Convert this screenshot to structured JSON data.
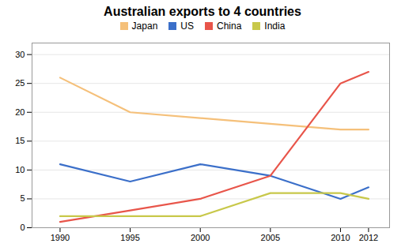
{
  "chart_data": {
    "type": "line",
    "title": "Australian exports to 4 countries",
    "x": [
      1990,
      1995,
      2000,
      2005,
      2010,
      2012
    ],
    "series": [
      {
        "name": "Japan",
        "color": "#F5C07A",
        "values": [
          26,
          20,
          19,
          18,
          17,
          17
        ]
      },
      {
        "name": "US",
        "color": "#3B6FC9",
        "values": [
          11,
          8,
          11,
          9,
          5,
          7
        ]
      },
      {
        "name": "China",
        "color": "#E8554A",
        "values": [
          1,
          3,
          5,
          9,
          25,
          27
        ]
      },
      {
        "name": "India",
        "color": "#C8C84A",
        "values": [
          2,
          2,
          2,
          6,
          6,
          5
        ]
      }
    ],
    "xlim": [
      1988,
      2013.5
    ],
    "xticks": [
      1990,
      1995,
      2000,
      2005,
      2010,
      2012
    ],
    "ylim": [
      0,
      32
    ],
    "yticks": [
      0,
      5,
      10,
      15,
      20,
      25,
      30
    ],
    "grid": "y",
    "legend": "top"
  }
}
